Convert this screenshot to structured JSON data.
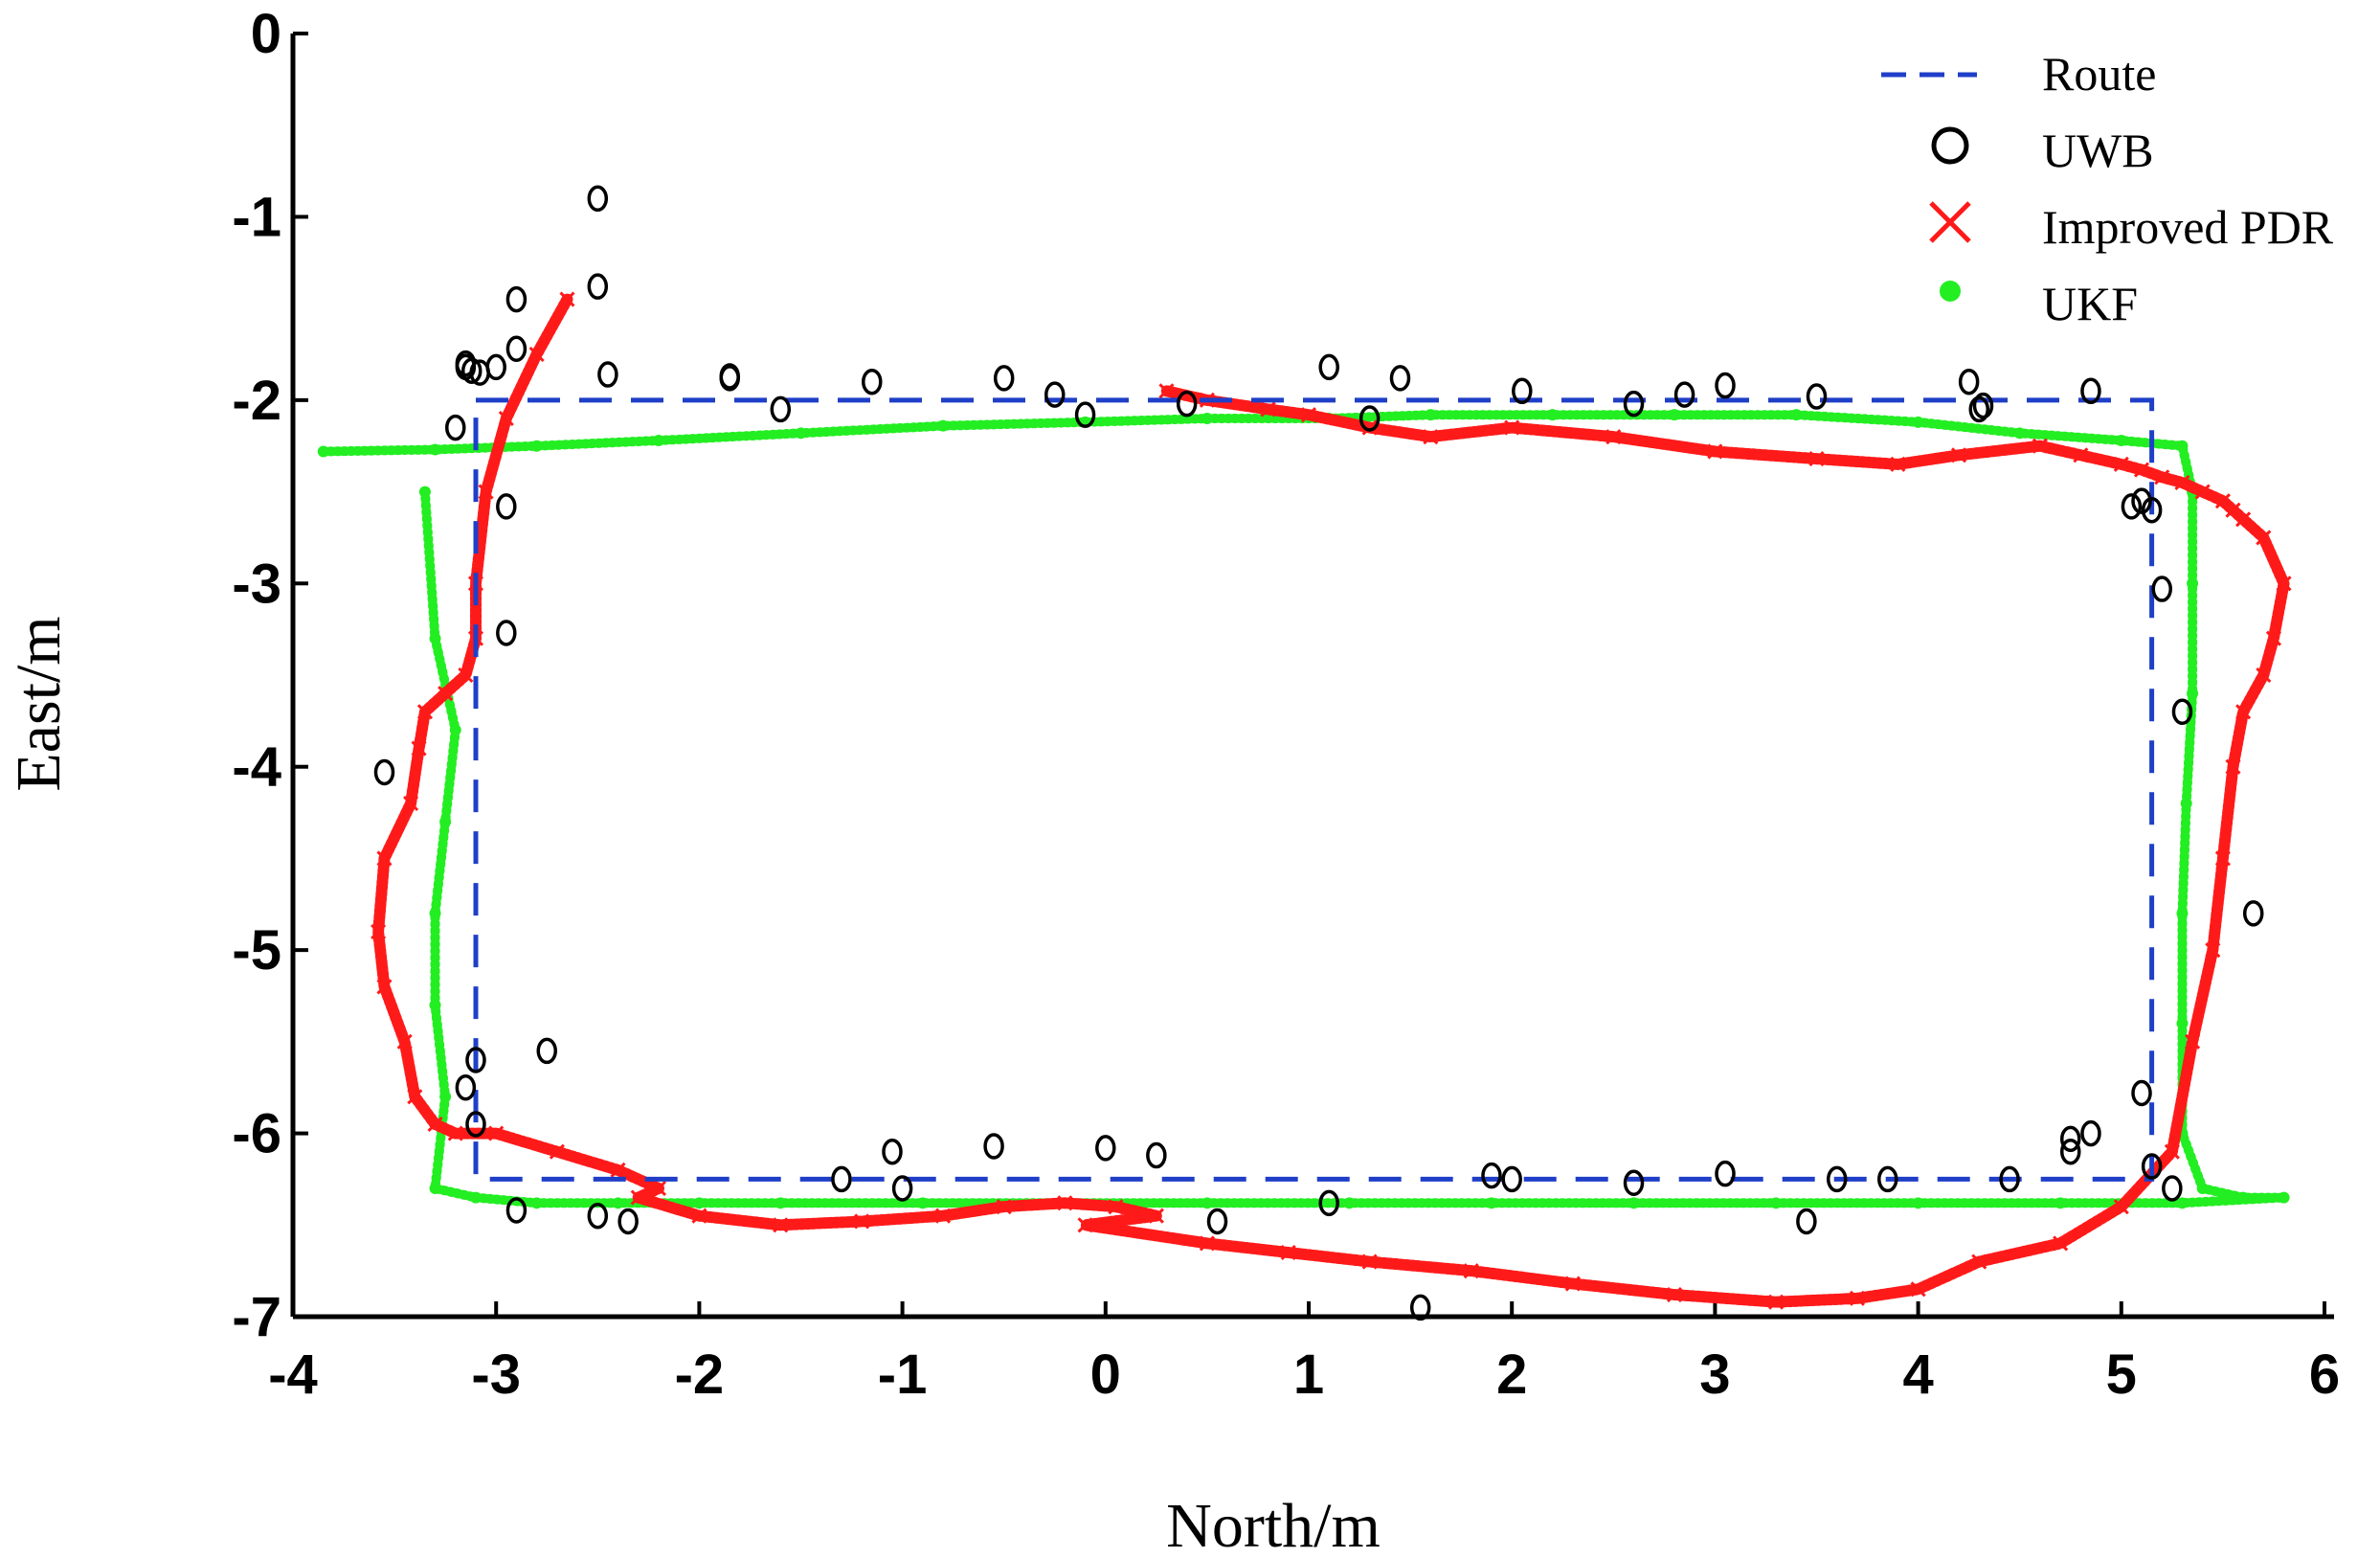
{
  "chart_data": {
    "type": "scatter",
    "title": "",
    "xlabel": "North/m",
    "ylabel": "East/m",
    "xlim": [
      -4,
      6
    ],
    "ylim": [
      -7,
      0
    ],
    "xticks": [
      -4,
      -3,
      -2,
      -1,
      0,
      1,
      2,
      3,
      4,
      5,
      6
    ],
    "yticks": [
      0,
      -1,
      -2,
      -3,
      -4,
      -5,
      -6,
      -7
    ],
    "xtick_labels": [
      "-4",
      "-3",
      "-2",
      "-1",
      "0",
      "1",
      "2",
      "3",
      "4",
      "5",
      "6"
    ],
    "ytick_labels": [
      "0",
      "-1",
      "-2",
      "-3",
      "-4",
      "-5",
      "-6",
      "-7"
    ],
    "grid": false,
    "legend_position": "top-right",
    "legend": [
      {
        "name": "Route",
        "style": "dashed-line",
        "color": "#1f3fc8"
      },
      {
        "name": "UWB",
        "style": "circle",
        "color": "#000000"
      },
      {
        "name": "Improved PDR",
        "style": "x-marker",
        "color": "#ff1a1a"
      },
      {
        "name": "UKF",
        "style": "dot",
        "color": "#22ee22"
      }
    ],
    "series": [
      {
        "name": "Route",
        "color": "#1f3fc8",
        "x": [
          -3.1,
          5.15,
          5.15,
          -3.1,
          -3.1
        ],
        "y": [
          -2.0,
          -2.0,
          -6.25,
          -6.25,
          -2.0
        ]
      },
      {
        "name": "UWB",
        "color": "#000000",
        "x": [
          -2.5,
          -2.5,
          -2.9,
          -2.9,
          -3.15,
          -3.15,
          -3.12,
          -3.08,
          -3.0,
          -2.45,
          -1.85,
          -1.85,
          -1.6,
          -1.15,
          -0.5,
          -0.25,
          -0.1,
          0.4,
          1.1,
          1.3,
          1.45,
          2.05,
          2.6,
          2.85,
          3.05,
          3.5,
          4.25,
          4.3,
          4.32,
          4.85,
          -3.2,
          -2.95,
          -2.95,
          -3.55,
          -2.75,
          -3.1,
          -3.15,
          -3.1,
          -2.9,
          -2.5,
          -2.35,
          -1.3,
          -1.05,
          -1.0,
          -0.55,
          0.0,
          0.25,
          0.55,
          1.1,
          1.55,
          1.9,
          2.0,
          2.6,
          3.05,
          3.45,
          3.6,
          3.85,
          4.45,
          4.75,
          4.75,
          4.85,
          5.1,
          5.15,
          5.25,
          5.2,
          5.05,
          5.1,
          5.15,
          5.65,
          5.3
        ],
        "y": [
          -0.9,
          -1.38,
          -1.45,
          -1.72,
          -1.8,
          -1.82,
          -1.84,
          -1.85,
          -1.82,
          -1.86,
          -1.87,
          -1.88,
          -2.05,
          -1.9,
          -1.88,
          -1.97,
          -2.08,
          -2.02,
          -1.82,
          -2.1,
          -1.88,
          -1.95,
          -2.02,
          -1.97,
          -1.92,
          -1.98,
          -1.9,
          -2.05,
          -2.03,
          -1.95,
          -2.15,
          -2.58,
          -3.27,
          -4.03,
          -5.55,
          -5.6,
          -5.75,
          -5.95,
          -6.42,
          -6.45,
          -6.48,
          -6.25,
          -6.1,
          -6.3,
          -6.07,
          -6.08,
          -6.12,
          -6.48,
          -6.38,
          -6.95,
          -6.23,
          -6.25,
          -6.27,
          -6.22,
          -6.48,
          -6.25,
          -6.25,
          -6.25,
          -6.1,
          -6.03,
          -6.0,
          -5.78,
          -6.18,
          -6.3,
          -3.03,
          -2.58,
          -2.55,
          -2.6,
          -4.8,
          -3.7
        ]
      },
      {
        "name": "Improved PDR",
        "color": "#ff1a1a",
        "x": [
          -2.65,
          -2.8,
          -2.95,
          -3.05,
          -3.1,
          -3.1,
          -3.15,
          -3.25,
          -3.35,
          -3.38,
          -3.42,
          -3.55,
          -3.58,
          -3.55,
          -3.45,
          -3.4,
          -3.3,
          -3.2,
          -3.0,
          -2.7,
          -2.4,
          -2.2,
          -2.3,
          -2.0,
          -1.6,
          -1.2,
          -0.8,
          -0.5,
          -0.2,
          0.05,
          0.25,
          -0.1,
          0.5,
          0.9,
          1.3,
          1.8,
          2.3,
          2.8,
          3.3,
          3.7,
          4.0,
          4.3,
          4.7,
          5.0,
          5.25,
          5.35,
          5.45,
          5.5,
          5.55,
          5.6,
          5.7,
          5.75,
          5.8,
          5.7,
          5.6,
          5.55,
          5.5,
          5.4,
          5.3,
          5.2,
          5.1,
          5.0,
          4.8,
          4.6,
          4.2,
          3.9,
          3.5,
          3.0,
          2.5,
          2.0,
          1.6,
          1.3,
          1.0,
          0.8,
          0.5,
          0.3
        ],
        "y": [
          -1.45,
          -1.75,
          -2.1,
          -2.5,
          -3.0,
          -3.3,
          -3.5,
          -3.6,
          -3.7,
          -3.9,
          -4.2,
          -4.5,
          -4.9,
          -5.2,
          -5.5,
          -5.8,
          -5.95,
          -6.0,
          -6.0,
          -6.1,
          -6.2,
          -6.3,
          -6.35,
          -6.45,
          -6.5,
          -6.48,
          -6.45,
          -6.4,
          -6.38,
          -6.4,
          -6.45,
          -6.5,
          -6.6,
          -6.65,
          -6.7,
          -6.75,
          -6.82,
          -6.88,
          -6.92,
          -6.9,
          -6.85,
          -6.7,
          -6.6,
          -6.4,
          -6.1,
          -5.5,
          -5.0,
          -4.5,
          -4.0,
          -3.7,
          -3.5,
          -3.3,
          -3.0,
          -2.75,
          -2.65,
          -2.6,
          -2.55,
          -2.5,
          -2.45,
          -2.42,
          -2.38,
          -2.35,
          -2.3,
          -2.25,
          -2.3,
          -2.35,
          -2.32,
          -2.28,
          -2.2,
          -2.15,
          -2.2,
          -2.15,
          -2.08,
          -2.05,
          -2.0,
          -1.95
        ]
      },
      {
        "name": "UKF",
        "color": "#22ee22",
        "x": [
          -3.85,
          -3.3,
          -2.8,
          -2.2,
          -1.5,
          -0.8,
          -0.1,
          0.5,
          1.1,
          1.6,
          2.2,
          2.8,
          3.4,
          4.0,
          4.5,
          5.0,
          5.3,
          5.35,
          5.35,
          5.35,
          5.32,
          5.3,
          5.3,
          5.3,
          5.4,
          5.6,
          5.8,
          5.3,
          4.7,
          4.0,
          3.3,
          2.6,
          1.9,
          1.2,
          0.5,
          -0.2,
          -0.9,
          -1.6,
          -2.0,
          -2.4,
          -2.8,
          -3.1,
          -3.3,
          -3.25,
          -3.3,
          -3.3,
          -3.25,
          -3.2,
          -3.3,
          -3.35
        ],
        "y": [
          -2.28,
          -2.27,
          -2.25,
          -2.22,
          -2.18,
          -2.14,
          -2.12,
          -2.1,
          -2.1,
          -2.08,
          -2.08,
          -2.08,
          -2.08,
          -2.12,
          -2.18,
          -2.22,
          -2.25,
          -2.5,
          -3.0,
          -3.6,
          -4.2,
          -4.8,
          -5.4,
          -6.0,
          -6.3,
          -6.35,
          -6.35,
          -6.38,
          -6.38,
          -6.38,
          -6.38,
          -6.38,
          -6.38,
          -6.38,
          -6.38,
          -6.38,
          -6.38,
          -6.38,
          -6.38,
          -6.38,
          -6.38,
          -6.35,
          -6.3,
          -5.8,
          -5.3,
          -4.8,
          -4.3,
          -3.8,
          -3.3,
          -2.5
        ]
      }
    ]
  }
}
